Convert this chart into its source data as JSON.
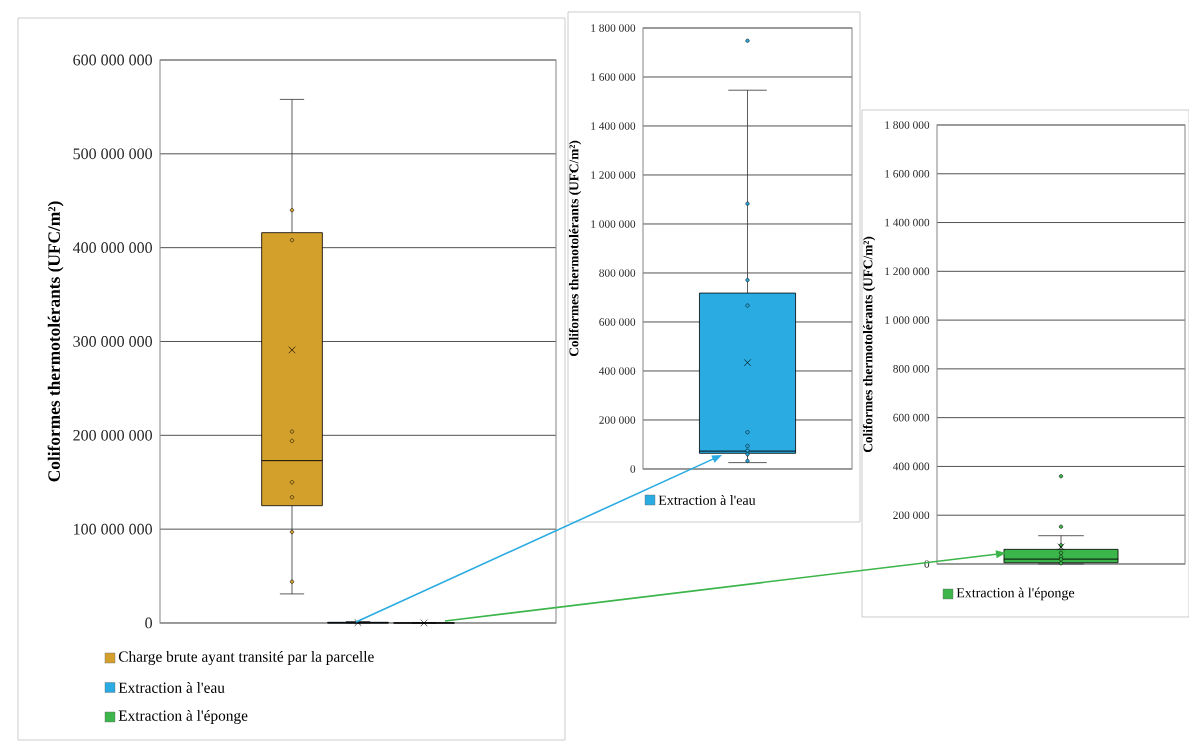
{
  "chart_data": [
    {
      "type": "box",
      "ylabel": "Coliformes thermotolérants (UFC/m²)",
      "categories": [
        null
      ],
      "ylim": [
        0,
        600000000
      ],
      "yticks": [
        0,
        {
          "value": 100000000,
          "label": "100 000 000"
        },
        {
          "value": 200000000,
          "label": "200 000 000"
        },
        {
          "value": 300000000,
          "label": "300 000 000"
        },
        {
          "value": 400000000,
          "label": "400 000 000"
        },
        {
          "value": 500000000,
          "label": "500 000 000"
        },
        {
          "value": 600000000,
          "label": "600 000 000"
        }
      ],
      "grid": "y",
      "legend": "bottom",
      "tick_labels": "y",
      "series": [
        {
          "name": "Charge brute ayant transité par la parcelle",
          "color": "#d4a02c",
          "boxes": [
            {
              "low": 31000000,
              "q1": 125000000,
              "median": 173000000,
              "q3": 416000000,
              "high": 558000000,
              "mean": 291000000,
              "outliers": [
                440000000,
                408000000,
                204000000,
                194000000,
                150000000,
                134000000,
                97000000,
                44000000
              ]
            }
          ]
        },
        {
          "name": "Extraction à l'eau",
          "color": "#2aace2",
          "boxes": [
            {
              "low": 26000,
              "q1": 64000,
              "median": 73000,
              "q3": 718000,
              "high": 1546000,
              "mean": 434000
            }
          ]
        },
        {
          "name": "Extraction à l'éponge",
          "color": "#3cb54a",
          "boxes": [
            {
              "low": 0,
              "q1": 5000,
              "median": 20000,
              "q3": 60000,
              "high": 116000,
              "mean": 70000
            }
          ]
        }
      ]
    },
    {
      "type": "box",
      "ylabel": "Coliformes thermotolérants (UFC/m²)",
      "categories": [
        null
      ],
      "ylim": [
        0,
        1800000
      ],
      "yticks": [
        0,
        {
          "value": 200000,
          "label": "200 000"
        },
        {
          "value": 400000,
          "label": "400 000"
        },
        {
          "value": 600000,
          "label": "600 000"
        },
        {
          "value": 800000,
          "label": "800 000"
        },
        {
          "value": 1000000,
          "label": "1 000 000"
        },
        {
          "value": 1200000,
          "label": "1 200 000"
        },
        {
          "value": 1400000,
          "label": "1 400 000"
        },
        {
          "value": 1600000,
          "label": "1 600 000"
        },
        {
          "value": 1800000,
          "label": "1 800 000"
        }
      ],
      "grid": "y",
      "legend": "bottom",
      "tick_labels": "y",
      "series": [
        {
          "name": "Extraction à l'eau",
          "color": "#2aace2",
          "boxes": [
            {
              "low": 26000,
              "q1": 64000,
              "median": 73000,
              "q3": 718000,
              "high": 1546000,
              "mean": 434000,
              "outliers": [
                1748000,
                1083000,
                771000,
                667000,
                150000,
                94000,
                75000,
                60000,
                33000
              ]
            }
          ]
        }
      ]
    },
    {
      "type": "box",
      "ylabel": "Coliformes thermotolérants (UFC/m²)",
      "categories": [
        null
      ],
      "ylim": [
        0,
        1800000
      ],
      "yticks": [
        0,
        {
          "value": 200000,
          "label": "200 000"
        },
        {
          "value": 400000,
          "label": "400 000"
        },
        {
          "value": 600000,
          "label": "600 000"
        },
        {
          "value": 800000,
          "label": "800 000"
        },
        {
          "value": 1000000,
          "label": "1 000 000"
        },
        {
          "value": 1200000,
          "label": "1 200 000"
        },
        {
          "value": 1400000,
          "label": "1 400 000"
        },
        {
          "value": 1600000,
          "label": "1 600 000"
        },
        {
          "value": 1800000,
          "label": "1 800 000"
        }
      ],
      "grid": "y",
      "legend": "bottom",
      "tick_labels": "y",
      "series": [
        {
          "name": "Extraction à l'éponge",
          "color": "#3cb54a",
          "boxes": [
            {
              "low": 0,
              "q1": 5000,
              "median": 20000,
              "q3": 60000,
              "high": 116000,
              "mean": 70000,
              "outliers": [
                360000,
                153000,
                77000,
                46000,
                30000,
                19000,
                3000
              ]
            }
          ]
        }
      ]
    }
  ]
}
